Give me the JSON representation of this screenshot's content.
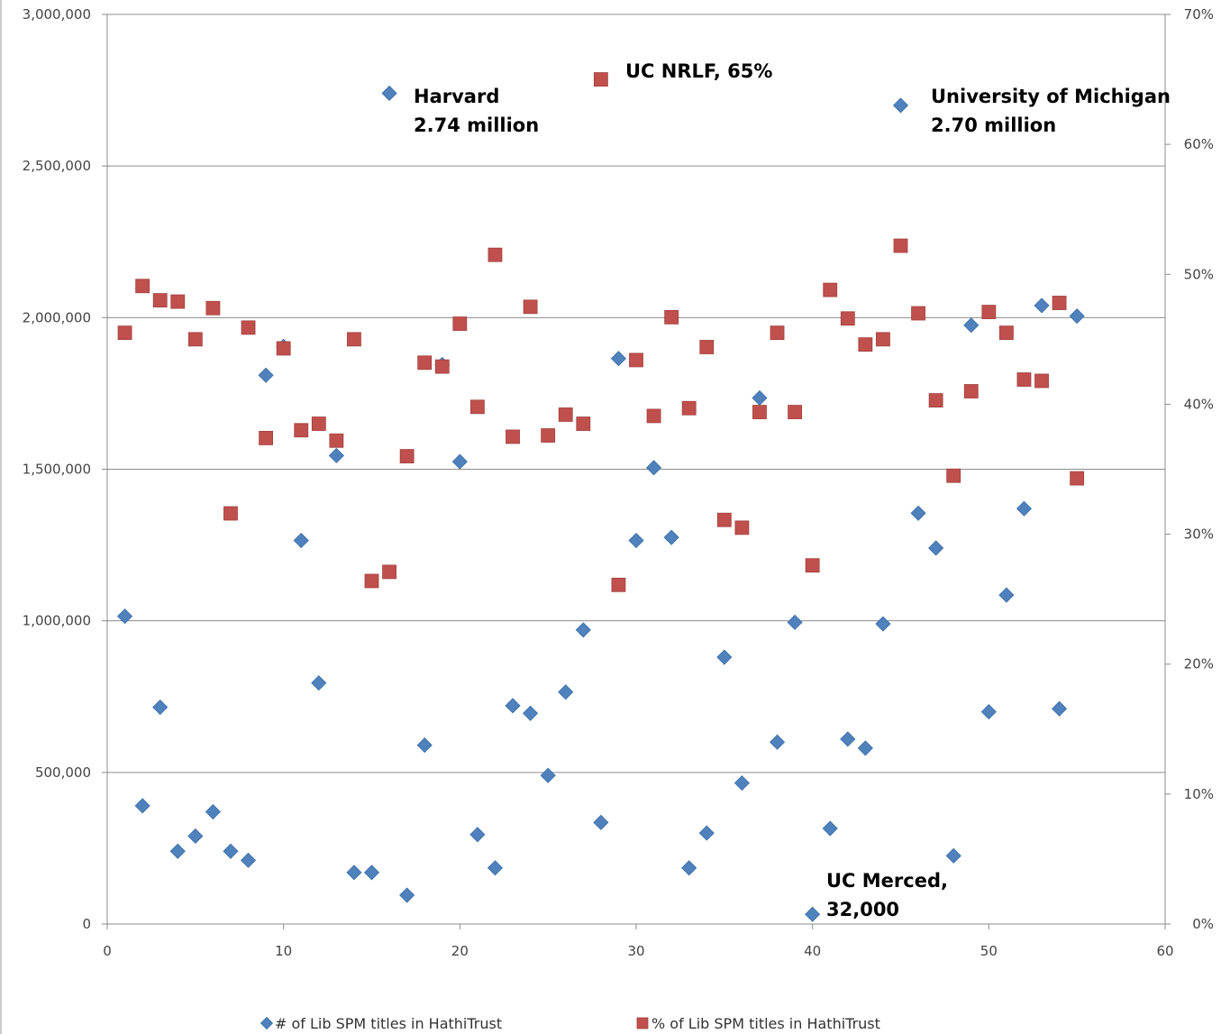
{
  "chart_data": {
    "type": "scatter",
    "xlim": [
      0,
      60
    ],
    "ylim_left": [
      0,
      3000000
    ],
    "ylim_right": [
      0,
      0.7
    ],
    "x_ticks": [
      "0",
      "10",
      "20",
      "30",
      "40",
      "50",
      "60"
    ],
    "y_left_ticks": [
      "0",
      "500,000",
      "1,000,000",
      "1,500,000",
      "2,000,000",
      "2,500,000",
      "3,000,000"
    ],
    "y_right_ticks": [
      "0%",
      "10%",
      "20%",
      "30%",
      "40%",
      "50%",
      "60%",
      "70%"
    ],
    "grid": "horizontal",
    "legend_position": "bottom",
    "series": [
      {
        "name": "# of Lib SPM titles in HathiTrust",
        "axis": "left",
        "marker": "diamond",
        "color": "#4f81bd",
        "x": [
          1,
          2,
          3,
          4,
          5,
          6,
          7,
          8,
          9,
          10,
          11,
          12,
          13,
          14,
          15,
          16,
          17,
          18,
          19,
          20,
          21,
          22,
          23,
          24,
          25,
          26,
          27,
          28,
          29,
          30,
          31,
          32,
          33,
          34,
          35,
          36,
          37,
          38,
          39,
          40,
          41,
          42,
          43,
          44,
          45,
          46,
          47,
          48,
          49,
          50,
          51,
          52,
          53,
          54,
          55
        ],
        "y": [
          1015000,
          390000,
          715000,
          240000,
          290000,
          370000,
          240000,
          210000,
          1810000,
          1905000,
          1265000,
          795000,
          1545000,
          170000,
          170000,
          2740000,
          95000,
          590000,
          1845000,
          1525000,
          295000,
          185000,
          720000,
          695000,
          490000,
          765000,
          970000,
          335000,
          1865000,
          1265000,
          1505000,
          1275000,
          185000,
          300000,
          880000,
          465000,
          1735000,
          600000,
          995000,
          32000,
          315000,
          610000,
          580000,
          990000,
          2700000,
          1355000,
          1240000,
          225000,
          1975000,
          700000,
          1085000,
          1370000,
          2040000,
          710000,
          2005000
        ]
      },
      {
        "name": "% of Lib SPM titles in HathiTrust",
        "axis": "right",
        "marker": "square",
        "color": "#c0504d",
        "x": [
          1,
          2,
          3,
          4,
          5,
          6,
          7,
          8,
          9,
          10,
          11,
          12,
          13,
          14,
          15,
          16,
          17,
          18,
          19,
          20,
          21,
          22,
          23,
          24,
          25,
          26,
          27,
          28,
          29,
          30,
          31,
          32,
          33,
          34,
          35,
          36,
          37,
          38,
          39,
          40,
          41,
          42,
          43,
          44,
          45,
          46,
          47,
          48,
          49,
          50,
          51,
          52,
          53,
          54,
          55
        ],
        "y": [
          0.455,
          0.491,
          0.48,
          0.479,
          0.45,
          0.474,
          0.316,
          0.459,
          0.374,
          0.443,
          0.38,
          0.385,
          0.372,
          0.45,
          0.264,
          0.271,
          0.36,
          0.432,
          0.429,
          0.462,
          0.398,
          0.515,
          0.375,
          0.475,
          0.376,
          0.392,
          0.385,
          0.65,
          0.261,
          0.434,
          0.391,
          0.467,
          0.397,
          0.444,
          0.311,
          0.305,
          0.394,
          0.455,
          0.394,
          0.276,
          0.488,
          0.466,
          0.446,
          0.45,
          0.522,
          0.47,
          0.403,
          0.345,
          0.41,
          0.471,
          0.455,
          0.419,
          0.418,
          0.478,
          0.343
        ]
      }
    ],
    "annotations": [
      {
        "name": "harvard",
        "lines": [
          "Harvard",
          "2.74 million"
        ]
      },
      {
        "name": "uc-nrlf",
        "lines": [
          "UC NRLF, 65%"
        ]
      },
      {
        "name": "umich",
        "lines": [
          "University of Michigan",
          "2.70 million"
        ]
      },
      {
        "name": "uc-merced",
        "lines": [
          "UC Merced,",
          "32,000"
        ]
      }
    ]
  }
}
